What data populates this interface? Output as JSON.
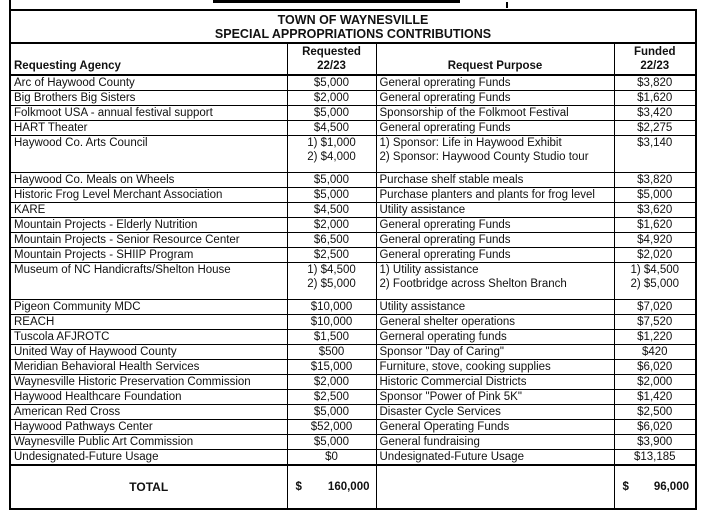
{
  "title": {
    "line1": "TOWN OF WAYNESVILLE",
    "line2": "SPECIAL APPROPRIATIONS CONTRIBUTIONS"
  },
  "header": {
    "agency": "Requesting Agency",
    "requested": "Requested\n22/23",
    "purpose": "Request Purpose",
    "funded": "Funded\n22/23"
  },
  "rows": [
    {
      "agency": "Arc of Haywood County",
      "requested": "$5,000",
      "purpose": "General oprerating Funds",
      "funded": "$3,820"
    },
    {
      "agency": "Big Brothers Big Sisters",
      "requested": "$2,000",
      "purpose": "General oprerating Funds",
      "funded": "$1,620"
    },
    {
      "agency": "Folkmoot USA - annual festival support",
      "requested": "$5,000",
      "purpose": "Sponsorship of the Folkmoot Festival",
      "funded": "$3,420"
    },
    {
      "agency": "HART Theater",
      "requested": "$4,500",
      "purpose": "General oprerating Funds",
      "funded": "$2,275"
    },
    {
      "agency": "Haywood Co. Arts Council",
      "requested": "1) $1,000\n2) $4,000",
      "purpose": "1) Sponsor: Life in Haywood Exhibit\n2) Sponsor: Haywood County Studio tour",
      "funded": "$3,140",
      "tall": true
    },
    {
      "agency": "Haywood Co. Meals on Wheels",
      "requested": "$5,000",
      "purpose": "Purchase shelf stable meals",
      "funded": "$3,820"
    },
    {
      "agency": "Historic Frog Level Merchant Association",
      "requested": "$5,000",
      "purpose": "Purchase planters and plants for frog level",
      "funded": "$5,000"
    },
    {
      "agency": "KARE",
      "requested": "$4,500",
      "purpose": "Utility assistance",
      "funded": "$3,620"
    },
    {
      "agency": "Mountain Projects - Elderly Nutrition",
      "requested": "$2,000",
      "purpose": "General oprerating Funds",
      "funded": "$1,620"
    },
    {
      "agency": "Mountain Projects - Senior Resource Center",
      "requested": "$6,500",
      "purpose": "General oprerating Funds",
      "funded": "$4,920"
    },
    {
      "agency": "Mountain Projects - SHIIP Program",
      "requested": "$2,500",
      "purpose": "General oprerating Funds",
      "funded": "$2,020"
    },
    {
      "agency": "Museum of NC Handicrafts/Shelton House",
      "requested": "1) $4,500\n2) $5,000",
      "purpose": "1) Utility assistance\n2) Footbridge across Shelton Branch",
      "funded": "1) $4,500\n2) $5,000",
      "tall": true
    },
    {
      "agency": "Pigeon Community MDC",
      "requested": "$10,000",
      "purpose": "Utility assistance",
      "funded": "$7,020"
    },
    {
      "agency": "REACH",
      "requested": "$10,000",
      "purpose": "General shelter operations",
      "funded": "$7,520"
    },
    {
      "agency": "Tuscola AFJROTC",
      "requested": "$1,500",
      "purpose": "Gerneral operating funds",
      "funded": "$1,220"
    },
    {
      "agency": "United Way of Haywood County",
      "requested": "$500",
      "purpose": "Sponsor \"Day of Caring\"",
      "funded": "$420"
    },
    {
      "agency": "Meridian Behavioral Health Services",
      "requested": "$15,000",
      "purpose": "Furniture, stove, cooking supplies",
      "funded": "$6,020"
    },
    {
      "agency": "Waynesville Historic Preservation Commission",
      "requested": "$2,000",
      "purpose": "Historic Commercial Districts",
      "funded": "$2,000"
    },
    {
      "agency": "Haywood Healthcare Foundation",
      "requested": "$2,500",
      "purpose": "Sponsor \"Power of Pink 5K\"",
      "funded": "$1,420"
    },
    {
      "agency": "American Red Cross",
      "requested": "$5,000",
      "purpose": "Disaster Cycle Services",
      "funded": "$2,500"
    },
    {
      "agency": "Haywood Pathways Center",
      "requested": "$52,000",
      "purpose": "General Operating Funds",
      "funded": "$6,020"
    },
    {
      "agency": "Waynesville Public Art Commission",
      "requested": "$5,000",
      "purpose": "General fundraising",
      "funded": "$3,900"
    },
    {
      "agency": "Undesignated-Future Usage",
      "requested": "$0",
      "purpose": "Undesignated-Future Usage",
      "funded": "$13,185"
    }
  ],
  "total_row": {
    "label": "TOTAL",
    "requested_currency": "$",
    "requested_amount": "160,000",
    "purpose": "",
    "funded_currency": "$",
    "funded_amount": "96,000"
  }
}
